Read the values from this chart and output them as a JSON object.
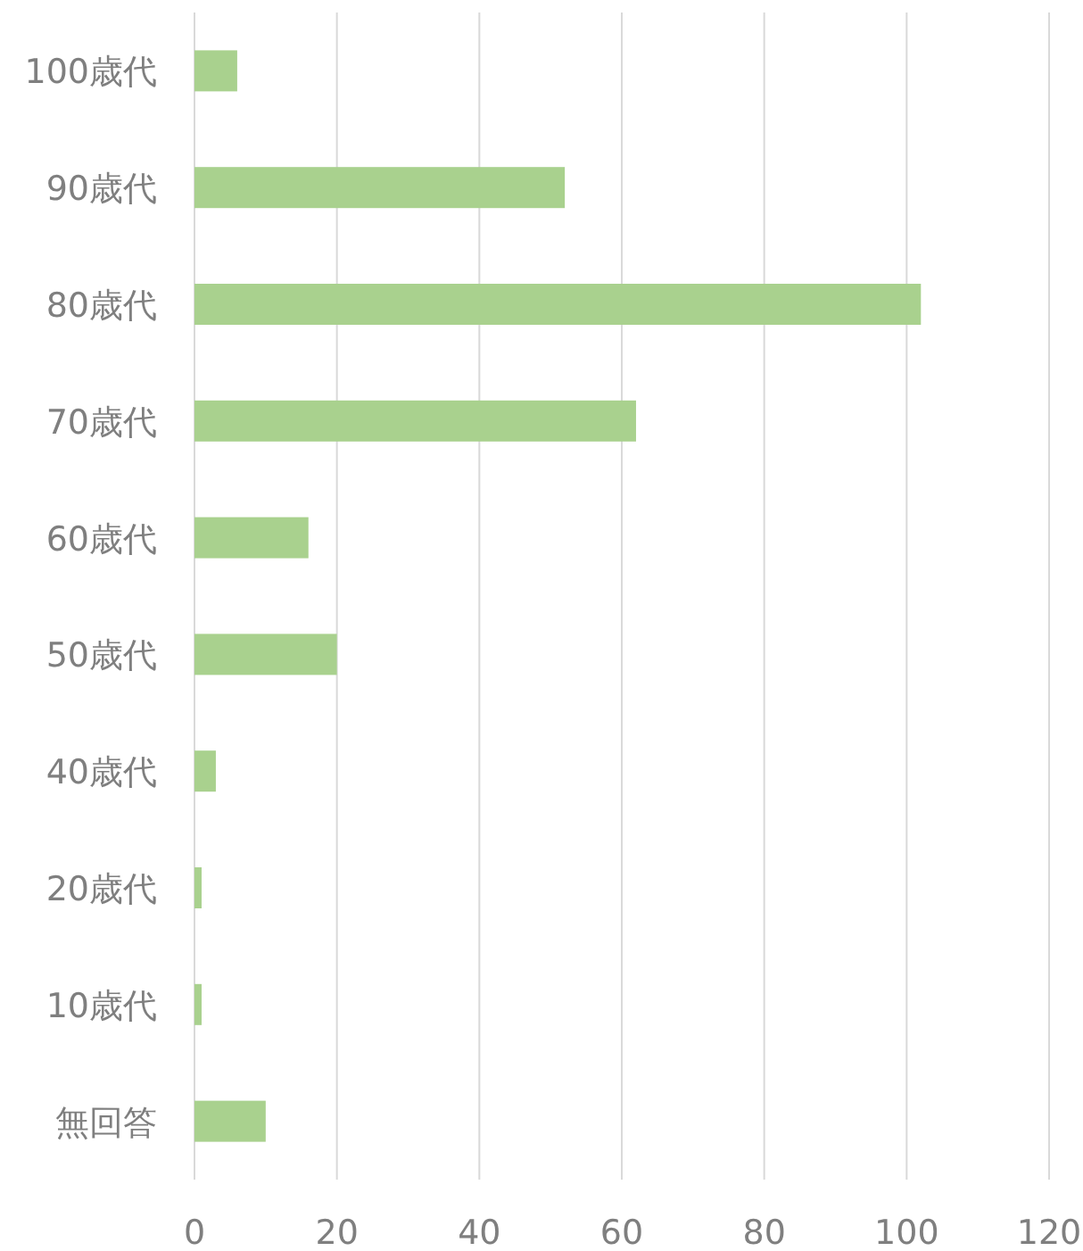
{
  "chart_data": {
    "type": "bar",
    "orientation": "horizontal",
    "categories": [
      "100歳代",
      "90歳代",
      "80歳代",
      "70歳代",
      "60歳代",
      "50歳代",
      "40歳代",
      "20歳代",
      "10歳代",
      "無回答"
    ],
    "values": [
      6,
      52,
      102,
      62,
      16,
      20,
      3,
      1,
      1,
      10
    ],
    "color": "#a9d18e",
    "xlim": [
      0,
      120
    ],
    "xticks": [
      0,
      20,
      40,
      60,
      80,
      100,
      120
    ],
    "grid": "x"
  }
}
